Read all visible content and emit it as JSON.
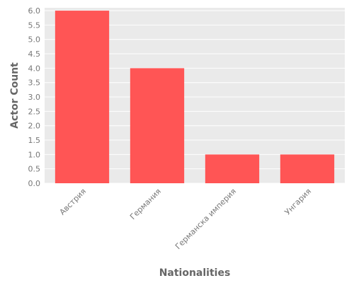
{
  "chart_data": {
    "type": "bar",
    "title": "",
    "xlabel": "Nationalities",
    "ylabel": "Actor Count",
    "categories": [
      "Австрия",
      "Германия",
      "Германска империя",
      "Унгария"
    ],
    "values": [
      6,
      4,
      1,
      1
    ],
    "ylim": [
      0,
      6.1
    ],
    "yticks": [
      "0.0",
      "0.5",
      "1.0",
      "1.5",
      "2.0",
      "2.5",
      "3.0",
      "3.5",
      "4.0",
      "4.5",
      "5.0",
      "5.5",
      "6.0"
    ],
    "grid": true,
    "legend": "none",
    "colors": {
      "bar": "#ff5555",
      "plot_background": "#eaeaea",
      "grid": "#ffffff",
      "text": "#777777"
    }
  }
}
